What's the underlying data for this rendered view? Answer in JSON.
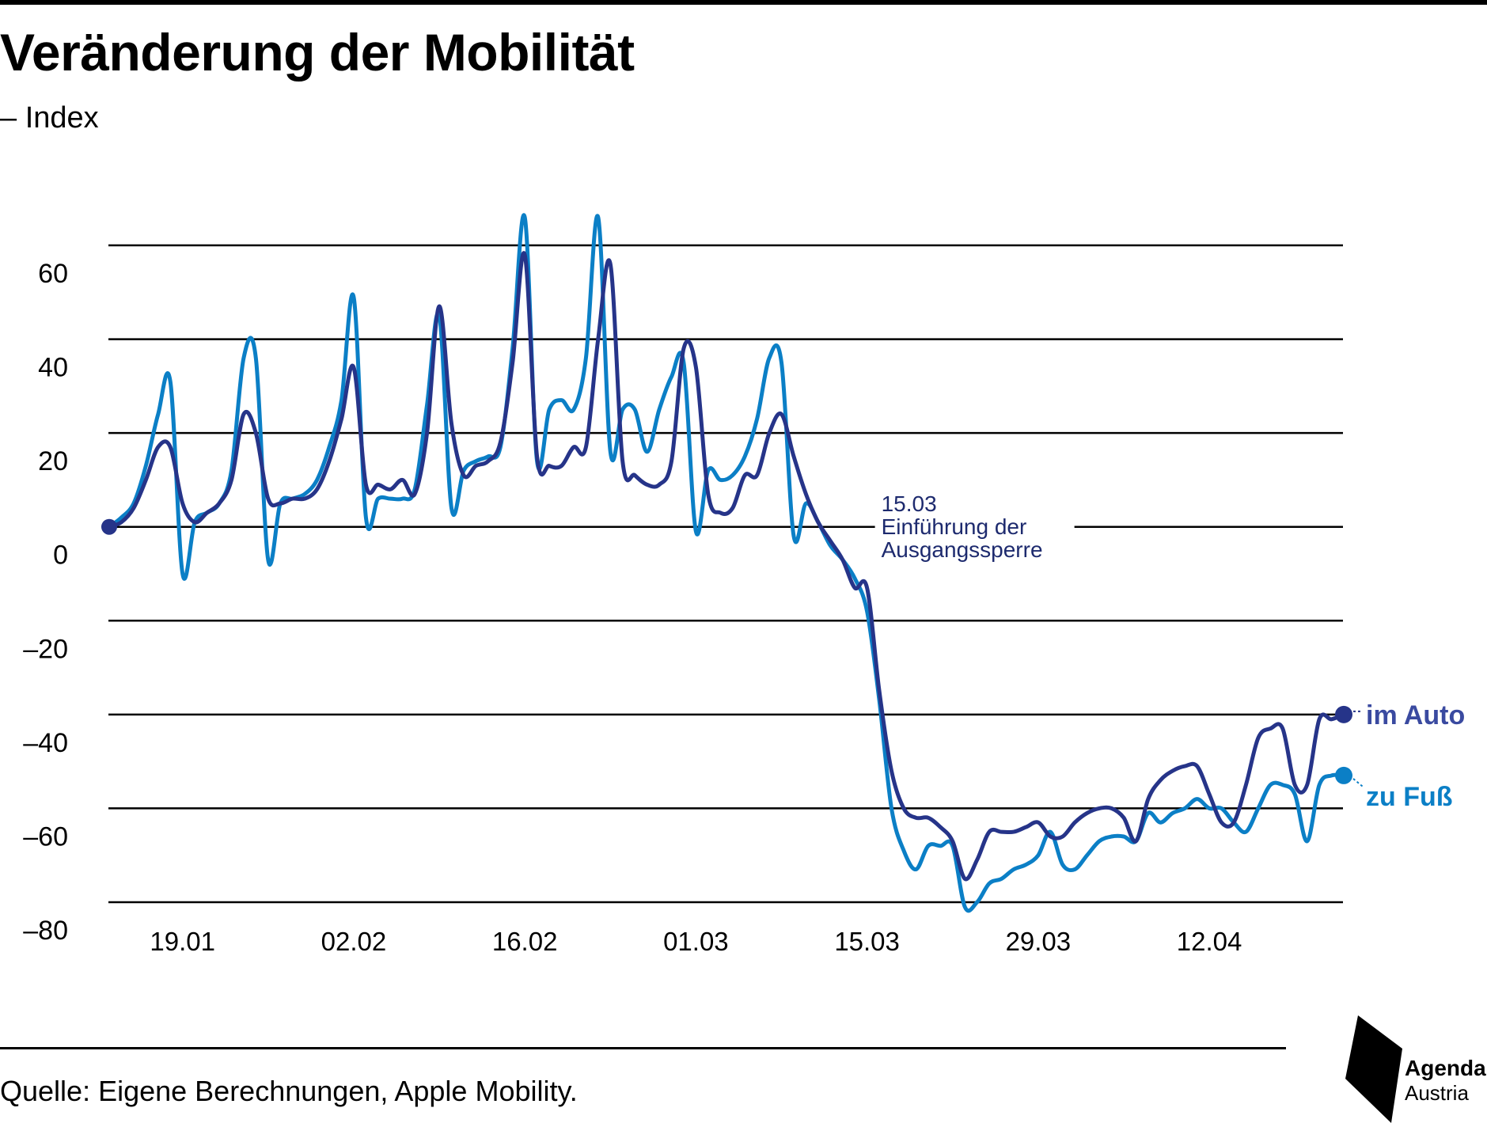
{
  "header": {
    "title": "Veränderung der Mobilität",
    "subtitle": "– Index"
  },
  "footer": {
    "source": "Quelle: Eigene Berechnungen, Apple Mobility.",
    "logo_line1": "Agenda",
    "logo_line2": "Austria"
  },
  "colors": {
    "auto": "#263489",
    "fuss": "#0b7fc6",
    "annotation": "#1d2a6e",
    "grid": "#000000"
  },
  "chart_data": {
    "type": "line",
    "title": "Veränderung der Mobilität",
    "subtitle": "– Index",
    "ylim": [
      -80,
      60
    ],
    "yticks": [
      60,
      40,
      20,
      0,
      -20,
      -40,
      -60,
      -80
    ],
    "ytick_labels": [
      "60",
      "40",
      "20",
      "0",
      "–20",
      "–40",
      "–60",
      "–80"
    ],
    "xlim": [
      "13.01",
      "25.04"
    ],
    "xticks": [
      {
        "label": "19.01",
        "day": 6
      },
      {
        "label": "02.02",
        "day": 20
      },
      {
        "label": "16.02",
        "day": 34
      },
      {
        "label": "01.03",
        "day": 48
      },
      {
        "label": "15.03",
        "day": 62
      },
      {
        "label": "29.03",
        "day": 76
      },
      {
        "label": "12.04",
        "day": 90
      }
    ],
    "grid": true,
    "annotation": {
      "day": 62,
      "value": 0,
      "lines": [
        "15.03",
        "Einführung der",
        "Ausgangssperre"
      ]
    },
    "series": [
      {
        "name": "im Auto",
        "color": "#263489",
        "start_label": "13.01",
        "values": [
          0,
          1,
          4,
          10,
          17,
          17,
          5,
          1,
          3,
          5,
          10,
          24,
          20,
          6,
          5,
          6,
          6,
          8,
          14,
          23,
          34,
          9,
          9,
          8,
          10,
          7,
          20,
          47,
          22,
          11,
          13,
          14,
          18,
          35,
          58,
          15,
          13,
          13,
          17,
          17,
          40,
          56,
          14,
          11,
          9,
          9,
          14,
          38,
          34,
          7,
          3,
          4,
          11,
          11,
          20,
          24,
          15,
          7,
          1,
          -3,
          -7,
          -13,
          -13,
          -35,
          -52,
          -60,
          -62,
          -62,
          -64,
          -67,
          -75,
          -71,
          -65,
          -65,
          -65,
          -64,
          -63,
          -66,
          -66,
          -63,
          -61,
          -60,
          -60,
          -62,
          -67,
          -58,
          -54,
          -52,
          -51,
          -51,
          -57,
          -63,
          -63,
          -55,
          -45,
          -43,
          -43,
          -55,
          -55,
          -41,
          -41,
          -40
        ]
      },
      {
        "name": "zu Fuß",
        "color": "#0b7fc6",
        "start_label": "13.01",
        "values": [
          0,
          2,
          5,
          13,
          24,
          31,
          -10,
          1,
          3,
          5,
          12,
          36,
          36,
          -7,
          5,
          6,
          7,
          10,
          17,
          27,
          49,
          2,
          6,
          6,
          6,
          8,
          26,
          45,
          4,
          12,
          14,
          15,
          17,
          38,
          66,
          14,
          25,
          27,
          25,
          36,
          66,
          16,
          25,
          25,
          16,
          25,
          32,
          35,
          -1,
          12,
          10,
          11,
          15,
          23,
          36,
          35,
          -2,
          5,
          1,
          -4,
          -7,
          -11,
          -18,
          -37,
          -60,
          -69,
          -73,
          -68,
          -68,
          -68,
          -81,
          -80,
          -76,
          -75,
          -73,
          -72,
          -70,
          -65,
          -72,
          -73,
          -70,
          -67,
          -66,
          -66,
          -67,
          -61,
          -63,
          -61,
          -60,
          -58,
          -60,
          -60,
          -63,
          -65,
          -60,
          -55,
          -55,
          -57,
          -67,
          -55,
          -53,
          -53
        ]
      }
    ]
  }
}
